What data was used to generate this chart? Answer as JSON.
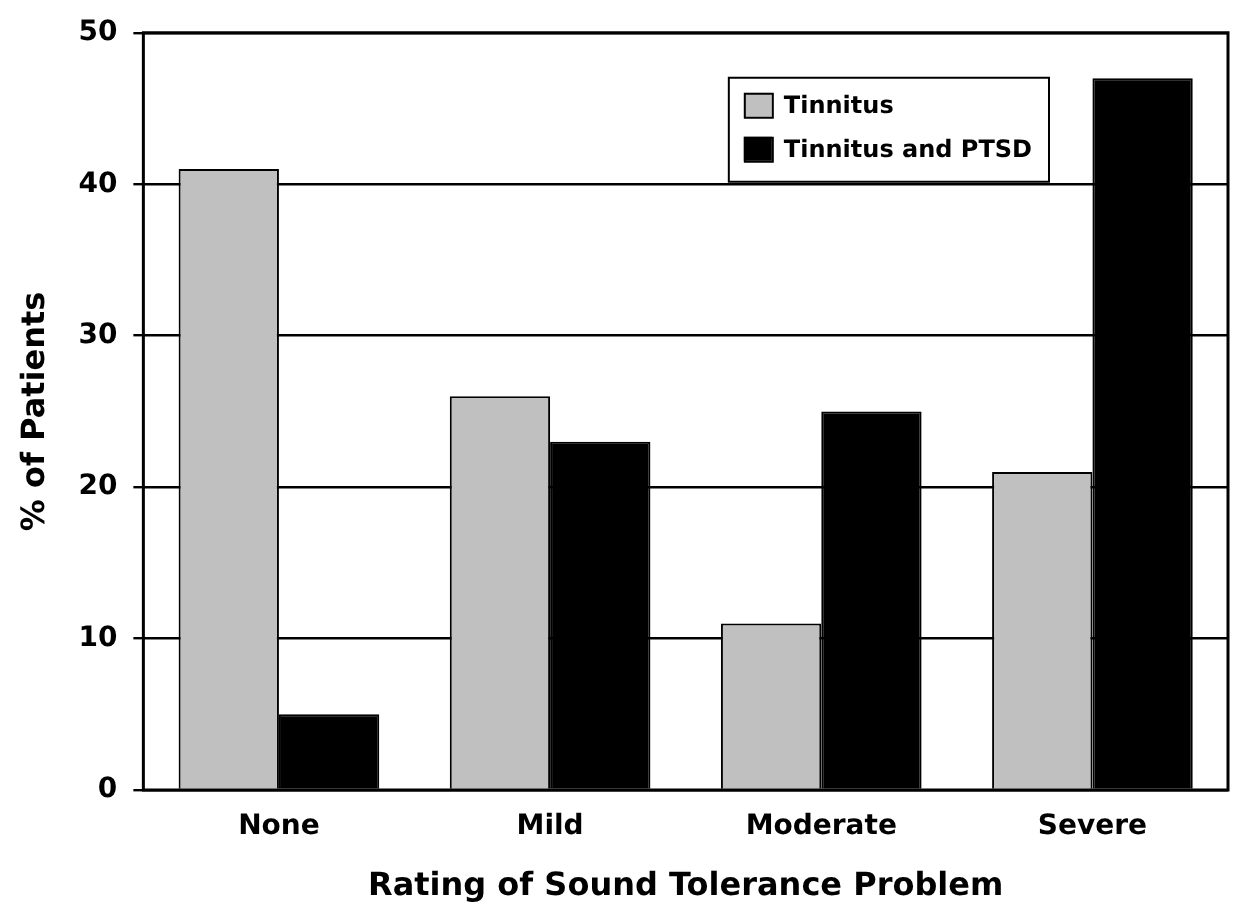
{
  "chart_data": {
    "type": "bar",
    "xlabel": "Rating of Sound Tolerance Problem",
    "ylabel": "% of Patients",
    "categories": [
      "None",
      "Mild",
      "Moderate",
      "Severe"
    ],
    "series": [
      {
        "name": "Tinnitus",
        "color": "#c0c0c0",
        "values": [
          41,
          26,
          11,
          21
        ]
      },
      {
        "name": "Tinnitus and PTSD",
        "color": "#000000",
        "values": [
          5,
          23,
          25,
          47
        ]
      }
    ],
    "ylim": [
      0,
      50
    ],
    "yticks": [
      0,
      10,
      20,
      30,
      40,
      50
    ],
    "grid": "y",
    "legend": "top right"
  }
}
